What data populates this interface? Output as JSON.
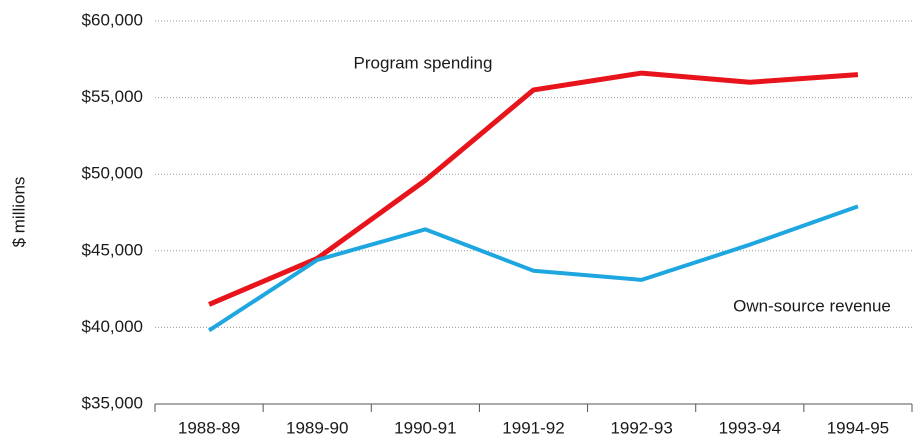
{
  "chart_data": {
    "type": "line",
    "y_label": "$ millions",
    "categories": [
      "1988-89",
      "1989-90",
      "1990-91",
      "1991-92",
      "1992-93",
      "1993-94",
      "1994-95"
    ],
    "series": [
      {
        "name": "Program spending",
        "color": "#e8141b",
        "values": [
          41500,
          44500,
          49600,
          55500,
          56600,
          56000,
          56500
        ]
      },
      {
        "name": "Own-source revenue",
        "color": "#1ea6e0",
        "values": [
          39800,
          44400,
          46400,
          43700,
          43100,
          45400,
          47900
        ]
      }
    ],
    "ylim": [
      35000,
      60000
    ],
    "yticks": [
      {
        "value": 35000,
        "label": "$35,000"
      },
      {
        "value": 40000,
        "label": "$40,000"
      },
      {
        "value": 45000,
        "label": "$45,000"
      },
      {
        "value": 50000,
        "label": "$50,000"
      },
      {
        "value": 55000,
        "label": "$55,000"
      },
      {
        "value": 60000,
        "label": "$60,000"
      }
    ],
    "grid": true
  }
}
